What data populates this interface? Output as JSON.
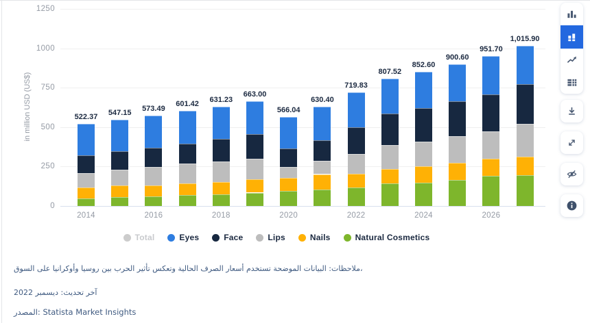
{
  "chart_data": {
    "type": "bar",
    "stacked": true,
    "title": "",
    "xlabel": "",
    "ylabel": "in million USD (US$)",
    "ylim": [
      0,
      1250
    ],
    "yticks": [
      0,
      250,
      500,
      750,
      1000,
      1250
    ],
    "grid": true,
    "legend_position": "bottom",
    "categories": [
      "2014",
      "2015",
      "2016",
      "2017",
      "2018",
      "2019",
      "2020",
      "2021",
      "2022",
      "2023",
      "2024",
      "2025",
      "2026",
      "2027"
    ],
    "x_tick_labels_shown": [
      "2014",
      "2016",
      "2018",
      "2020",
      "2022",
      "2024",
      "2026"
    ],
    "totals_labels": [
      "522.37",
      "547.15",
      "573.49",
      "601.42",
      "631.23",
      "663.00",
      "566.04",
      "630.40",
      "719.83",
      "807.52",
      "852.60",
      "900.60",
      "951.70",
      "1,015.90"
    ],
    "series": [
      {
        "name": "Eyes",
        "color": "#2e7de0",
        "values": [
          200.87,
          199.35,
          205.09,
          206.72,
          207.13,
          206.9,
          203.34,
          213.7,
          219.83,
          219.52,
          230.7,
          237.0,
          242.5,
          245.3
        ]
      },
      {
        "name": "Face",
        "color": "#172840",
        "values": [
          114.0,
          118.4,
          119.7,
          124.1,
          143.4,
          156.5,
          117.1,
          131.7,
          171.0,
          201.0,
          215.3,
          222.0,
          234.1,
          251.6
        ]
      },
      {
        "name": "Lips",
        "color": "#bdbdbd",
        "values": [
          90.4,
          97.8,
          117.1,
          128.9,
          127.2,
          131.6,
          67.1,
          83.2,
          124.2,
          153.2,
          155.3,
          168.3,
          175.5,
          204.5
        ]
      },
      {
        "name": "Nails",
        "color": "#ffb105",
        "values": [
          70.2,
          73.3,
          70.2,
          71.5,
          80.3,
          83.4,
          83.3,
          96.5,
          87.7,
          90.4,
          105.2,
          107.9,
          109.6,
          117.1
        ]
      },
      {
        "name": "Natural Cosmetics",
        "color": "#7eb62c",
        "values": [
          46.9,
          58.3,
          61.4,
          70.2,
          73.2,
          84.6,
          95.2,
          105.3,
          117.1,
          143.4,
          146.1,
          165.4,
          190.0,
          197.4
        ]
      }
    ]
  },
  "legend": {
    "items": [
      {
        "label": "Total",
        "color": "#cccccc",
        "disabled": true
      },
      {
        "label": "Eyes",
        "color": "#2e7de0",
        "disabled": false
      },
      {
        "label": "Face",
        "color": "#172840",
        "disabled": false
      },
      {
        "label": "Lips",
        "color": "#bdbdbd",
        "disabled": false
      },
      {
        "label": "Nails",
        "color": "#ffb105",
        "disabled": false
      },
      {
        "label": "Natural Cosmetics",
        "color": "#7eb62c",
        "disabled": false
      }
    ]
  },
  "toolbar": {
    "selected": "stacked-column-chart",
    "groups": [
      [
        "column-chart",
        "stacked-column-chart",
        "line-chart",
        "table"
      ],
      [
        "download"
      ],
      [
        "expand"
      ],
      [
        "hide"
      ],
      [
        "info"
      ]
    ]
  },
  "notes": {
    "line1": "ملاحظات: البيانات الموضحة تستخدم أسعار الصرف الحالية وتعكس تأثير الحرب بين روسيا وأوكرانيا على السوق،",
    "line2": "آخر تحديث: ديسمبر 2022",
    "line3": "المصدر: Statista Market Insights"
  }
}
